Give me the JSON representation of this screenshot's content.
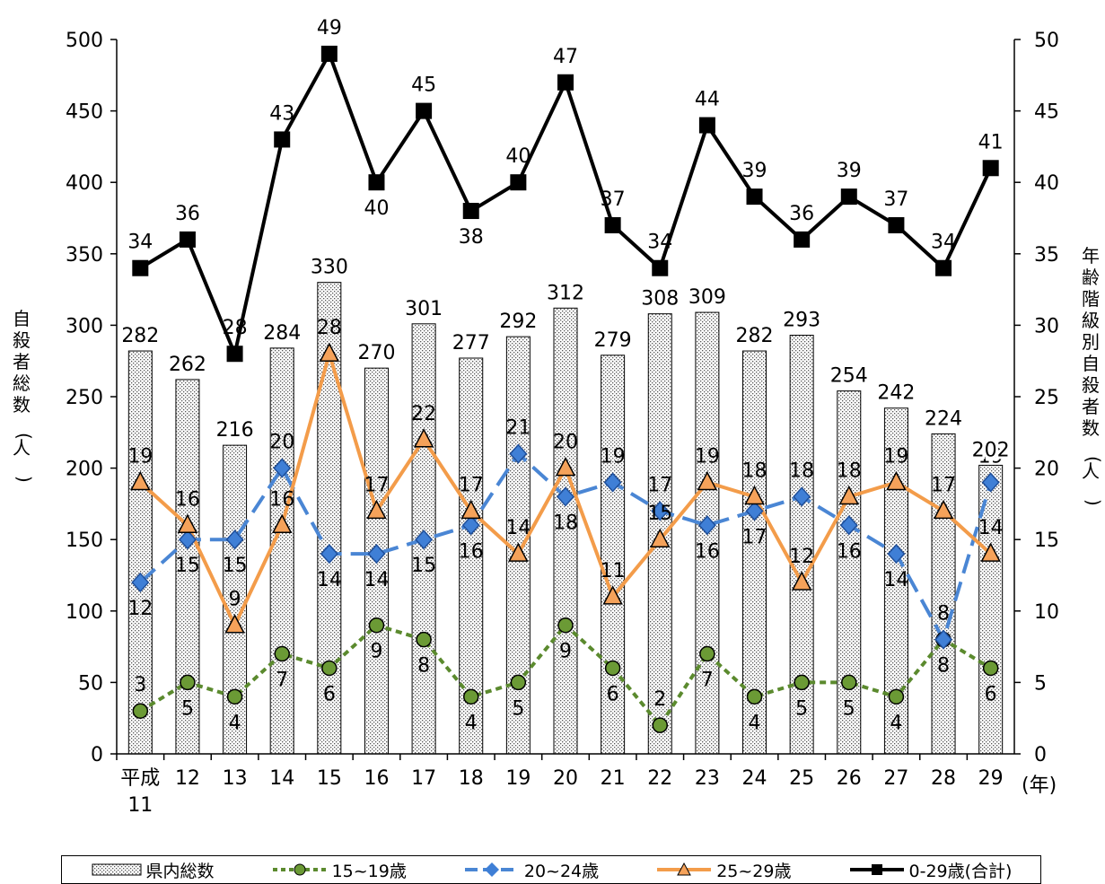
{
  "chart_data": {
    "type": "bar",
    "categories": [
      "平成\n11",
      "12",
      "13",
      "14",
      "15",
      "16",
      "17",
      "18",
      "19",
      "20",
      "21",
      "22",
      "23",
      "24",
      "25",
      "26",
      "27",
      "28",
      "29"
    ],
    "x_unit": "(年)",
    "ylabel_left": "自殺者総数(人)",
    "ylabel_right": "年齢階級別自殺者数(人)",
    "ylim_left": [
      0,
      500
    ],
    "yticks_left": [
      0,
      50,
      100,
      150,
      200,
      250,
      300,
      350,
      400,
      450,
      500
    ],
    "ylim_right": [
      0,
      50
    ],
    "yticks_right": [
      0,
      5,
      10,
      15,
      20,
      25,
      30,
      35,
      40,
      45,
      50
    ],
    "series": [
      {
        "name": "県内総数",
        "type": "bar",
        "axis": "left",
        "values": [
          282,
          262,
          216,
          284,
          330,
          270,
          301,
          277,
          292,
          312,
          279,
          308,
          309,
          282,
          293,
          254,
          242,
          224,
          202
        ]
      },
      {
        "name": "15~19歳",
        "type": "line",
        "axis": "right",
        "color": "#5b8a2e",
        "marker": "circle",
        "dash": "dashed",
        "values": [
          3,
          5,
          4,
          7,
          6,
          9,
          8,
          4,
          5,
          9,
          6,
          2,
          7,
          4,
          5,
          5,
          4,
          8,
          6
        ]
      },
      {
        "name": "20~24歳",
        "type": "line",
        "axis": "right",
        "color": "#4a86d4",
        "marker": "diamond",
        "dash": "long-dash",
        "values": [
          12,
          15,
          15,
          20,
          14,
          14,
          15,
          16,
          21,
          18,
          19,
          17,
          16,
          17,
          18,
          16,
          14,
          8,
          19
        ]
      },
      {
        "name": "25~29歳",
        "type": "line",
        "axis": "right",
        "color": "#f39c4a",
        "marker": "triangle",
        "dash": "solid",
        "values": [
          19,
          16,
          9,
          16,
          28,
          17,
          22,
          17,
          14,
          20,
          11,
          15,
          19,
          18,
          12,
          18,
          19,
          17,
          14
        ]
      },
      {
        "name": "0-29歳(合計)",
        "type": "line",
        "axis": "right",
        "color": "#000000",
        "marker": "square",
        "dash": "solid",
        "values": [
          34,
          36,
          28,
          43,
          49,
          40,
          45,
          38,
          40,
          47,
          37,
          34,
          44,
          39,
          36,
          39,
          37,
          34,
          41
        ]
      }
    ],
    "legend_position": "bottom",
    "grid": false
  }
}
